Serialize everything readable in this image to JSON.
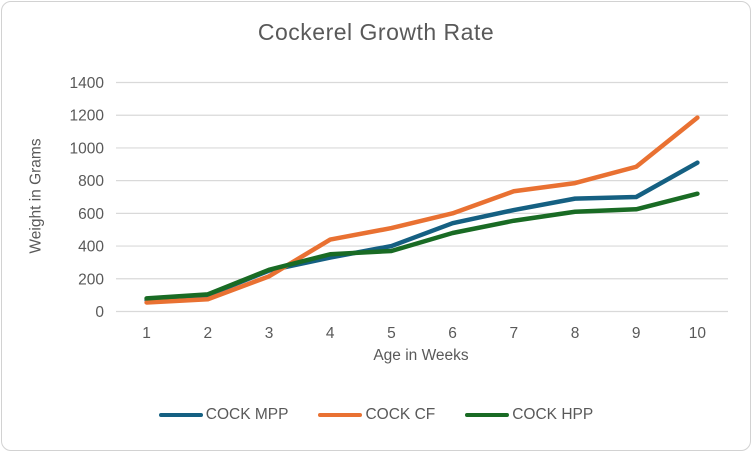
{
  "chart_data": {
    "type": "line",
    "title": "Cockerel Growth Rate",
    "xlabel": "Age in Weeks",
    "ylabel": "Weight in Grams",
    "x": [
      1,
      2,
      3,
      4,
      5,
      6,
      7,
      8,
      9,
      10
    ],
    "ylim": [
      0,
      1400
    ],
    "y_ticks": [
      0,
      200,
      400,
      600,
      800,
      1000,
      1200,
      1400
    ],
    "grid": true,
    "legend_position": "bottom",
    "colors": {
      "grid": "#d9d9d9",
      "text": "#595959"
    },
    "series": [
      {
        "name": "COCK MPP",
        "color": "#156082",
        "values": [
          70,
          100,
          250,
          330,
          400,
          540,
          620,
          690,
          700,
          910
        ]
      },
      {
        "name": "COCK CF",
        "color": "#E97132",
        "values": [
          55,
          75,
          215,
          440,
          510,
          600,
          735,
          785,
          885,
          1185
        ]
      },
      {
        "name": "COCK HPP",
        "color": "#196B24",
        "values": [
          80,
          105,
          255,
          350,
          370,
          480,
          555,
          610,
          625,
          720
        ]
      }
    ]
  }
}
